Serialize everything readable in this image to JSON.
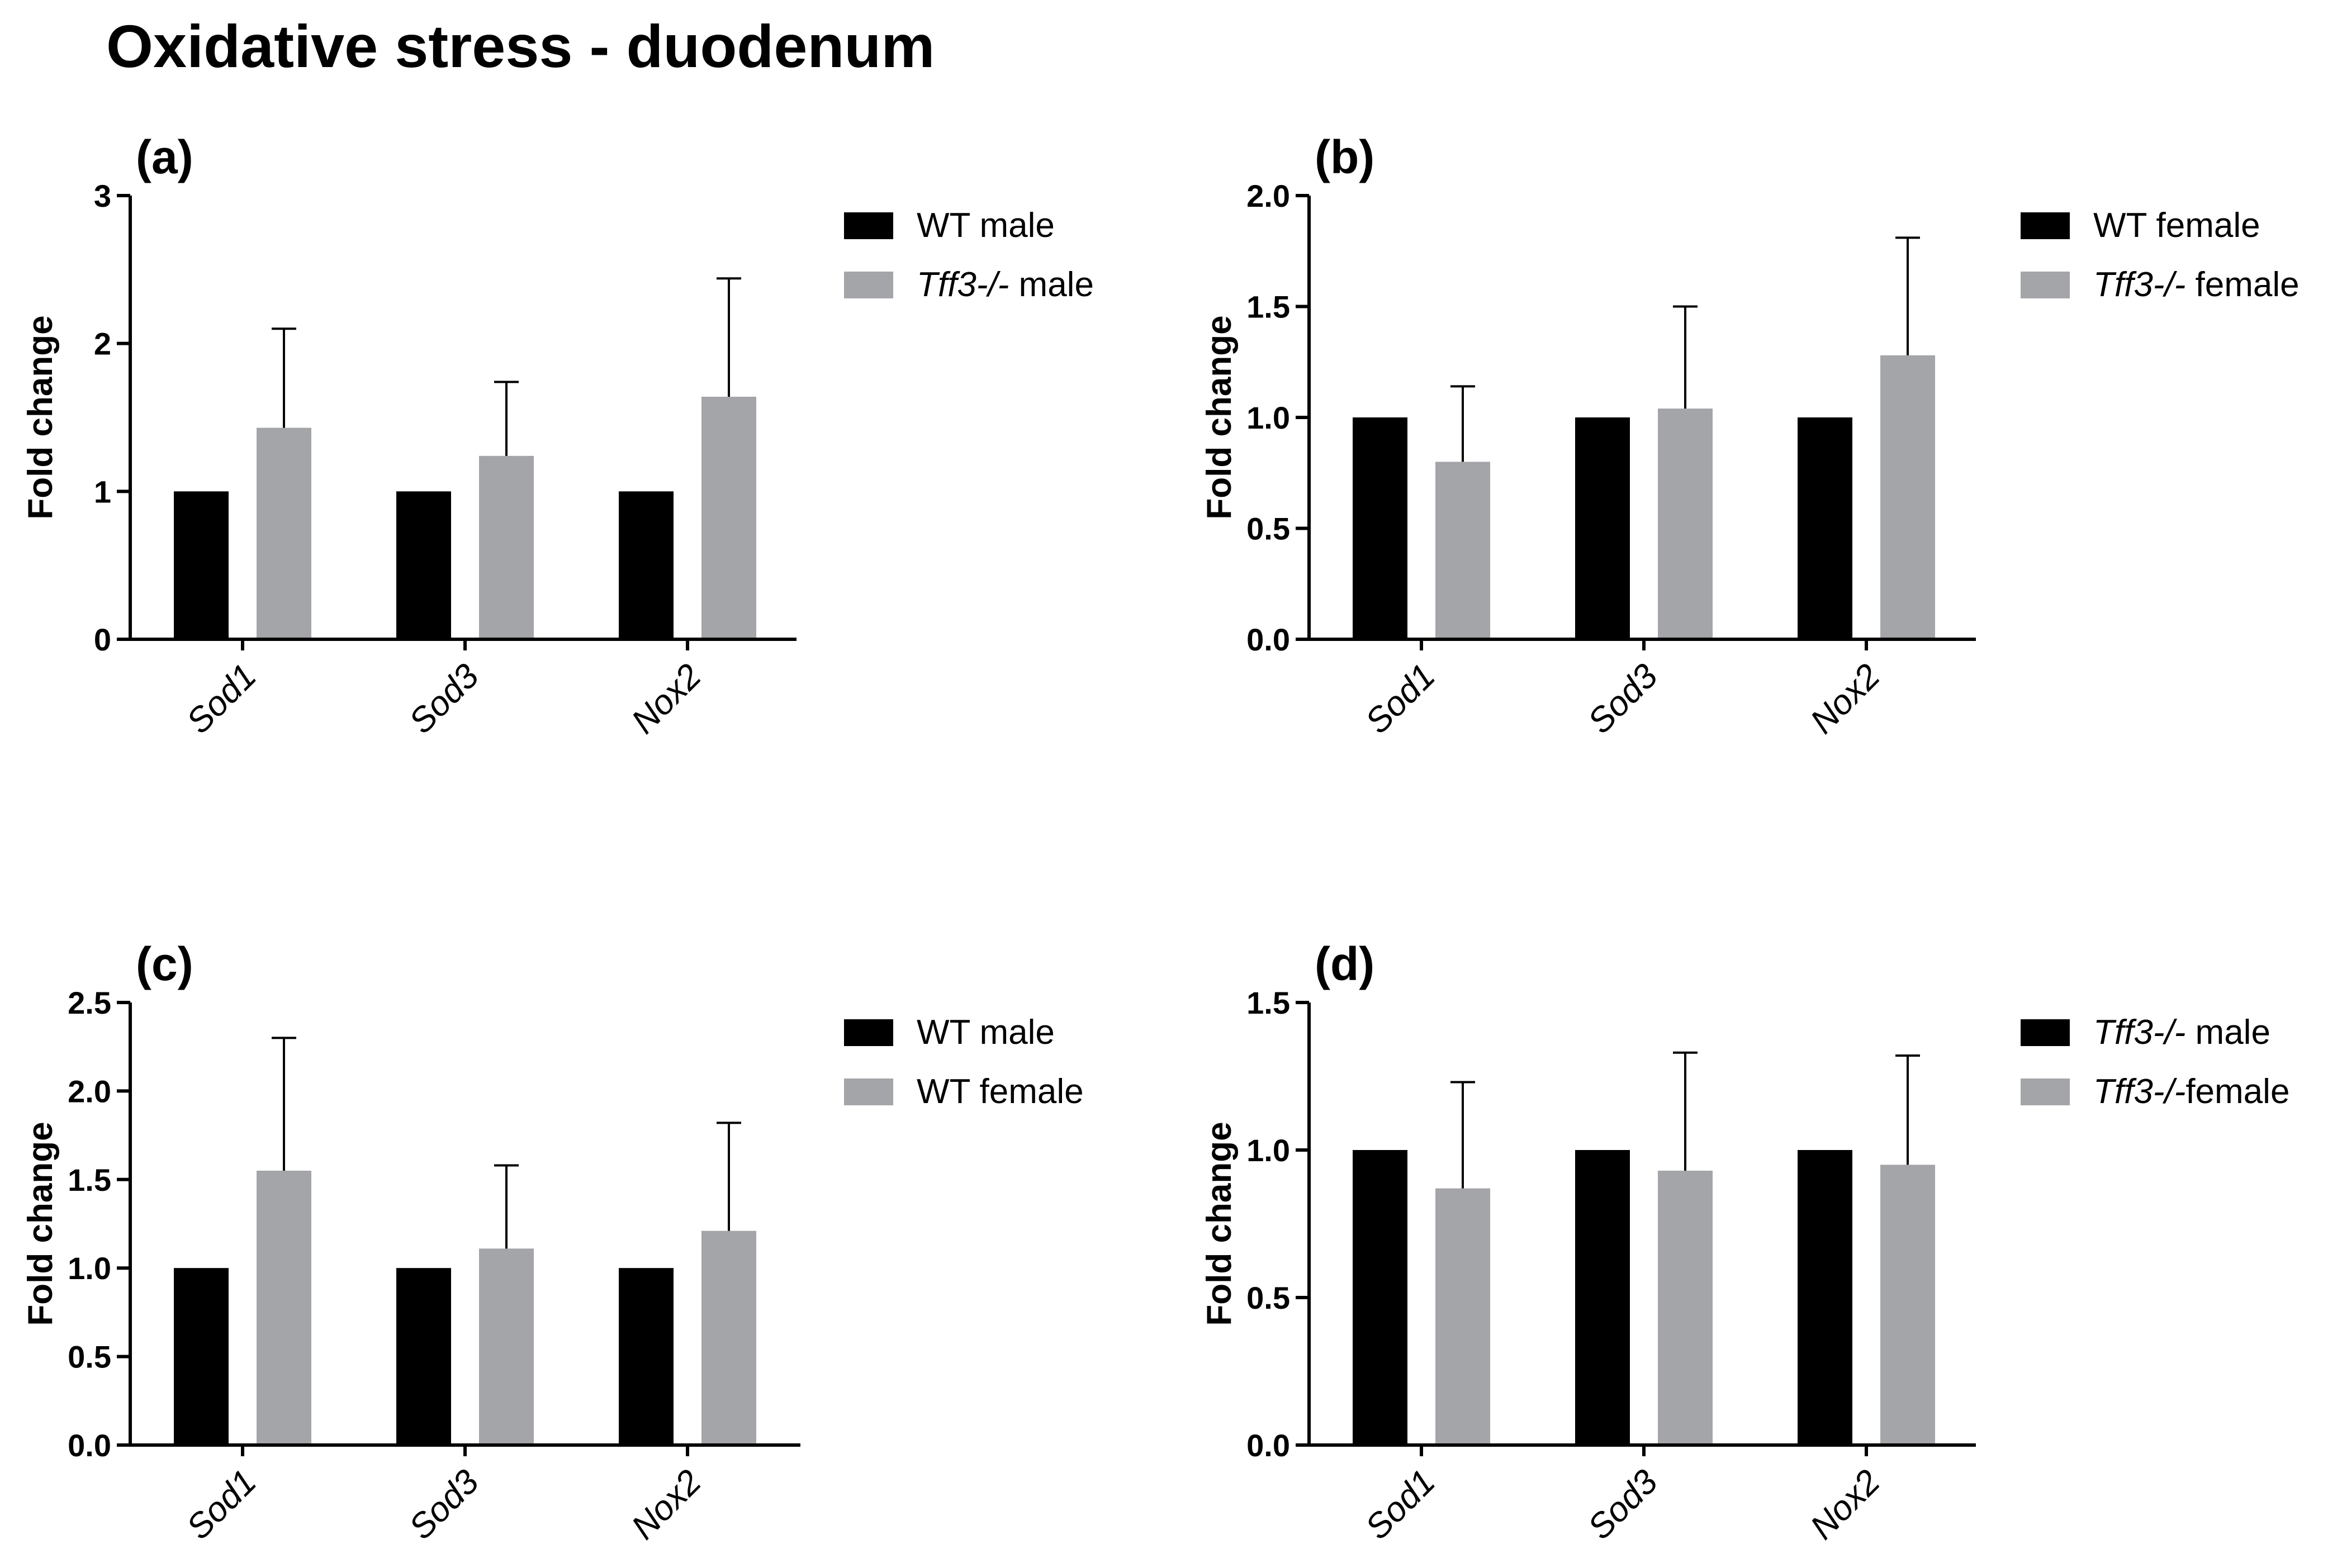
{
  "title": "Oxidative stress - duodenum",
  "colors": {
    "series1": "#000000",
    "series2": "#a4a5a8",
    "axis": "#000000"
  },
  "chart_data": [
    {
      "panel": "(a)",
      "type": "bar",
      "ylabel": "Fold change",
      "categories": [
        "Sod1",
        "Sod3",
        "Nox2"
      ],
      "ylim": [
        0,
        3
      ],
      "yticks": [
        "0",
        "1",
        "2",
        "3"
      ],
      "series": [
        {
          "name": "WT male",
          "values": [
            1.0,
            1.0,
            1.0
          ],
          "errors": [
            0,
            0,
            0
          ]
        },
        {
          "name_italic": "Tff3-/-",
          "name_rest": " male",
          "values": [
            1.43,
            1.24,
            1.64
          ],
          "errors": [
            0.67,
            0.5,
            0.8
          ]
        }
      ]
    },
    {
      "panel": "(b)",
      "type": "bar",
      "ylabel": "Fold change",
      "categories": [
        "Sod1",
        "Sod3",
        "Nox2"
      ],
      "ylim": [
        0,
        2
      ],
      "yticks": [
        "0.0",
        "0.5",
        "1.0",
        "1.5",
        "2.0"
      ],
      "series": [
        {
          "name": "WT female",
          "values": [
            1.0,
            1.0,
            1.0
          ],
          "errors": [
            0,
            0,
            0
          ]
        },
        {
          "name_italic": "Tff3-/-",
          "name_rest": " female",
          "values": [
            0.8,
            1.04,
            1.28
          ],
          "errors": [
            0.34,
            0.46,
            0.53
          ]
        }
      ]
    },
    {
      "panel": "(c)",
      "type": "bar",
      "ylabel": "Fold change",
      "categories": [
        "Sod1",
        "Sod3",
        "Nox2"
      ],
      "ylim": [
        0,
        2.5
      ],
      "yticks": [
        "0.0",
        "0.5",
        "1.0",
        "1.5",
        "2.0",
        "2.5"
      ],
      "series": [
        {
          "name": "WT male",
          "values": [
            1.0,
            1.0,
            1.0
          ],
          "errors": [
            0,
            0,
            0
          ]
        },
        {
          "name": "WT female",
          "values": [
            1.55,
            1.11,
            1.21
          ],
          "errors": [
            0.75,
            0.47,
            0.61
          ]
        }
      ]
    },
    {
      "panel": "(d)",
      "type": "bar",
      "ylabel": "Fold change",
      "categories": [
        "Sod1",
        "Sod3",
        "Nox2"
      ],
      "ylim": [
        0,
        1.5
      ],
      "yticks": [
        "0.0",
        "0.5",
        "1.0",
        "1.5"
      ],
      "series": [
        {
          "name_italic": "Tff3-/-",
          "name_rest": " male",
          "values": [
            1.0,
            1.0,
            1.0
          ],
          "errors": [
            0,
            0,
            0
          ]
        },
        {
          "name_italic": "Tff3-/-",
          "name_rest": "female",
          "values": [
            0.87,
            0.93,
            0.95
          ],
          "errors": [
            0.36,
            0.4,
            0.37
          ]
        }
      ]
    }
  ]
}
